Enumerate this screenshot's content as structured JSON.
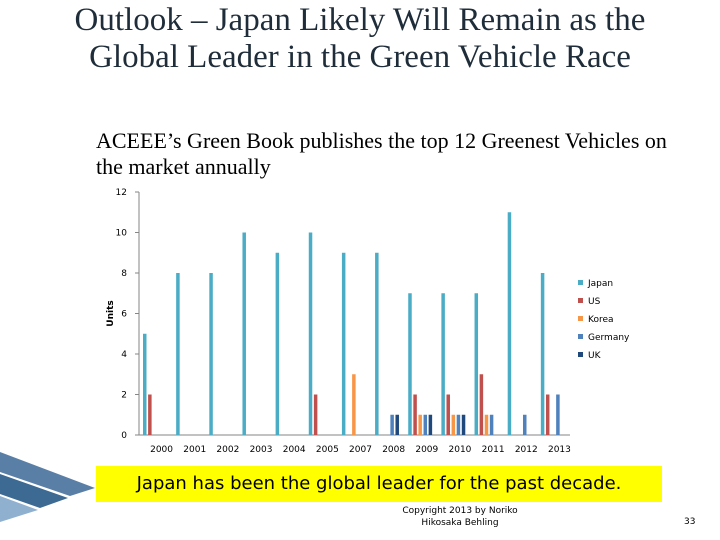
{
  "slide": {
    "title": "Outlook – Japan Likely Will Remain as the Global Leader in the Green Vehicle Race",
    "subtitle": "ACEEE’s Green Book publishes the top 12 Greenest Vehicles on the market annually",
    "callout": "Japan has been the global leader for the past decade.",
    "footer_line1": "Copyright 2013 by Noriko",
    "footer_line2": "Hikosaka Behling",
    "page_number": "33"
  },
  "colors": {
    "Japan": "#4bacc6",
    "US": "#c0504d",
    "Korea": "#f79646",
    "Germany": "#4f81bd",
    "UK": "#1f497d"
  },
  "chart_data": {
    "type": "bar",
    "ylabel": "Units",
    "ylim": [
      0,
      12
    ],
    "yticks": [
      0,
      2,
      4,
      6,
      8,
      10,
      12
    ],
    "categories": [
      "2000",
      "2001",
      "2002",
      "2003",
      "2004",
      "2005",
      "2007",
      "2008",
      "2009",
      "2010",
      "2011",
      "2012",
      "2013"
    ],
    "series": [
      {
        "name": "Japan",
        "values": [
          5,
          8,
          8,
          10,
          9,
          10,
          9,
          9,
          7,
          7,
          7,
          11,
          8
        ]
      },
      {
        "name": "US",
        "values": [
          2,
          0,
          0,
          0,
          0,
          2,
          0,
          0,
          2,
          2,
          3,
          0,
          2
        ]
      },
      {
        "name": "Korea",
        "values": [
          0,
          0,
          0,
          0,
          0,
          0,
          3,
          0,
          1,
          1,
          1,
          0,
          0
        ]
      },
      {
        "name": "Germany",
        "values": [
          0,
          0,
          0,
          0,
          0,
          0,
          0,
          1,
          1,
          1,
          1,
          1,
          2
        ]
      },
      {
        "name": "UK",
        "values": [
          0,
          0,
          0,
          0,
          0,
          0,
          0,
          1,
          1,
          1,
          0,
          0,
          0
        ]
      }
    ],
    "legend_position": "right",
    "grid": false
  }
}
